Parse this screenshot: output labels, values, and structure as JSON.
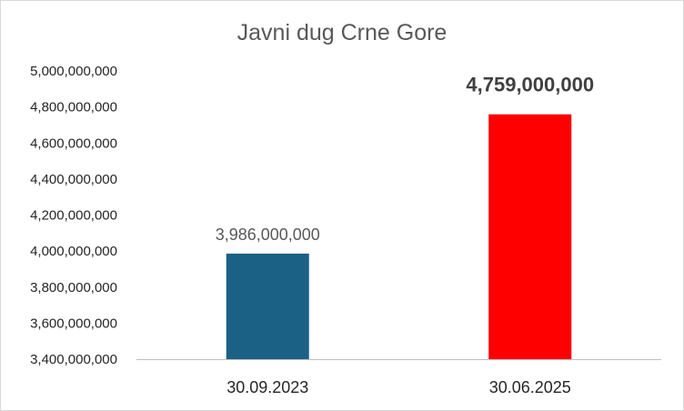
{
  "chart_data": {
    "type": "bar",
    "title": "Javni dug Crne Gore",
    "categories": [
      "30.09.2023",
      "30.06.2025"
    ],
    "values": [
      3986000000,
      4759000000
    ],
    "data_labels": [
      "3,986,000,000",
      "4,759,000,000"
    ],
    "bar_colors": [
      "#1a6185",
      "#ff0000"
    ],
    "ylim": [
      3400000000,
      5000000000
    ],
    "yticks": [
      3400000000,
      3600000000,
      3800000000,
      4000000000,
      4200000000,
      4400000000,
      4600000000,
      4800000000,
      5000000000
    ],
    "ytick_labels": [
      "3,400,000,000",
      "3,600,000,000",
      "3,800,000,000",
      "4,000,000,000",
      "4,200,000,000",
      "4,400,000,000",
      "4,600,000,000",
      "4,800,000,000",
      "5,000,000,000"
    ],
    "grid": false,
    "xlabel": "",
    "ylabel": ""
  }
}
